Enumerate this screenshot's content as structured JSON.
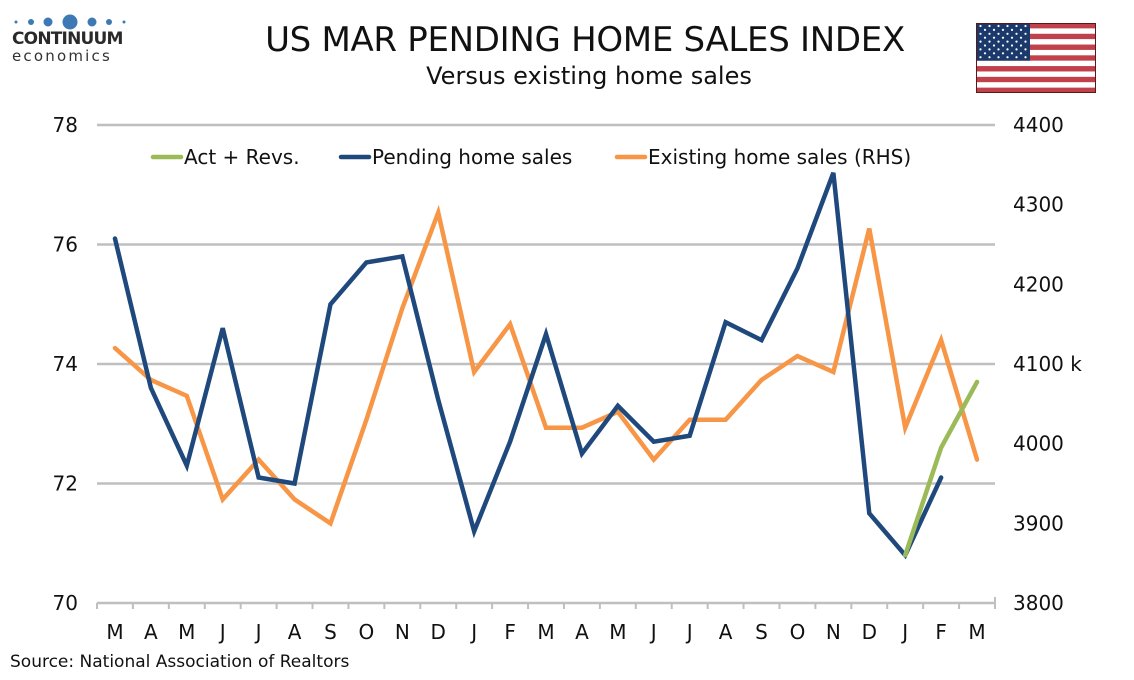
{
  "header": {
    "title": "US MAR PENDING HOME SALES INDEX",
    "subtitle": "Versus existing home sales",
    "logo_name": "CONTINUUM",
    "logo_sub": "economics",
    "flag_icon": "us-flag-icon"
  },
  "footer": {
    "source": "Source: National Association of Realtors"
  },
  "colors": {
    "pending": "#1f497d",
    "existing": "#f79646",
    "act_revs": "#9bbb59",
    "grid": "#bfbfbf",
    "logo_blue": "#3d7ab5"
  },
  "chart_data": {
    "type": "line",
    "title": "US MAR PENDING HOME SALES INDEX",
    "subtitle": "Versus existing home sales",
    "xlabel": "",
    "ylabel_left": "",
    "ylabel_right": "k",
    "categories": [
      "M",
      "A",
      "M",
      "J",
      "J",
      "A",
      "S",
      "O",
      "N",
      "D",
      "J",
      "F",
      "M",
      "A",
      "M",
      "J",
      "J",
      "A",
      "S",
      "O",
      "N",
      "D",
      "J",
      "F",
      "M"
    ],
    "ylim_left": [
      70,
      78
    ],
    "yticks_left": [
      70,
      72,
      74,
      76,
      78
    ],
    "ylim_right": [
      3800,
      4400
    ],
    "yticks_right": [
      3800,
      3900,
      4000,
      4100,
      4200,
      4300,
      4400
    ],
    "right_unit_label_at": 4100,
    "right_unit": "k",
    "grid": true,
    "legend_position": "top",
    "series": [
      {
        "name": "Act + Revs.",
        "axis": "left",
        "color": "#9bbb59",
        "values": [
          null,
          null,
          null,
          null,
          null,
          null,
          null,
          null,
          null,
          null,
          null,
          null,
          null,
          null,
          null,
          null,
          null,
          null,
          null,
          null,
          null,
          null,
          70.8,
          72.6,
          73.7
        ]
      },
      {
        "name": "Pending home sales",
        "axis": "left",
        "color": "#1f497d",
        "values": [
          76.1,
          73.6,
          72.3,
          74.6,
          72.1,
          72.0,
          75.0,
          75.7,
          75.8,
          73.4,
          71.2,
          72.7,
          74.5,
          72.5,
          73.3,
          72.7,
          72.8,
          74.7,
          74.4,
          75.6,
          77.2,
          71.5,
          70.8,
          72.1,
          null
        ]
      },
      {
        "name": "Existing home sales (RHS)",
        "axis": "right",
        "color": "#f79646",
        "values": [
          4120,
          4080,
          4060,
          3930,
          3980,
          3930,
          3900,
          4030,
          4170,
          4290,
          4090,
          4150,
          4020,
          4020,
          4040,
          3980,
          4030,
          4030,
          4080,
          4110,
          4090,
          4270,
          4020,
          4130,
          3980
        ]
      }
    ]
  }
}
